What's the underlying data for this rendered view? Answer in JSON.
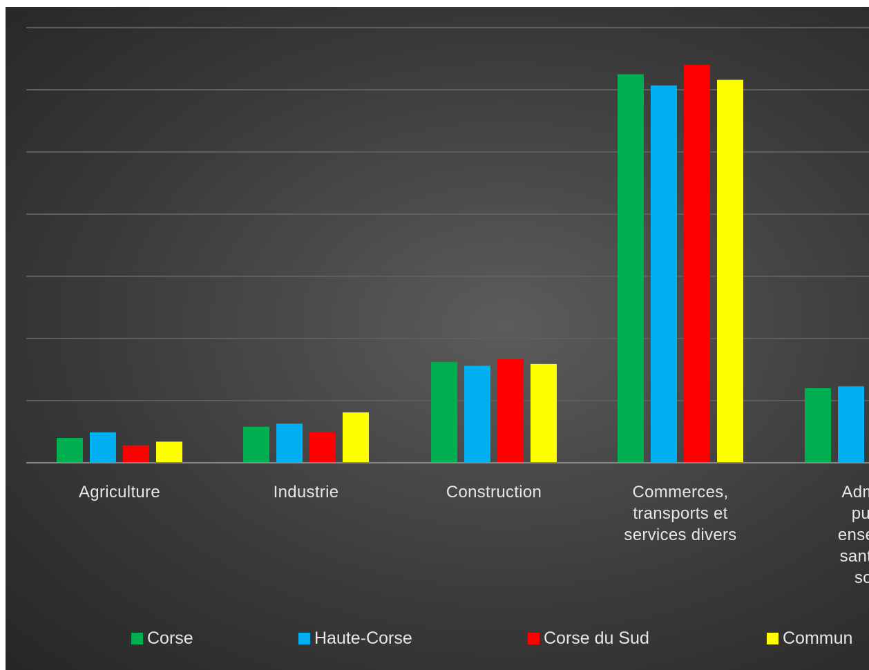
{
  "colors": {
    "Corse": "#00b050",
    "Haute-Corse": "#00b0f0",
    "Corse du Sud": "#ff0000",
    "Commun": "#ffff00"
  },
  "chart_data": {
    "type": "bar",
    "title": "",
    "xlabel": "",
    "ylabel": "",
    "ylim": [
      0,
      70
    ],
    "grid": true,
    "legend_position": "bottom",
    "categories": [
      [
        "Agriculture"
      ],
      [
        "Industrie"
      ],
      [
        "Construction"
      ],
      [
        "Commerces,",
        "transports et",
        "services divers"
      ],
      [
        "Admini",
        "publ",
        "enseign",
        "santé e",
        "soc"
      ]
    ],
    "series": [
      {
        "name": "Corse",
        "color": "#00b050",
        "values": [
          4.0,
          5.8,
          16.2,
          62.5,
          12.0
        ]
      },
      {
        "name": "Haute-Corse",
        "color": "#00b0f0",
        "values": [
          4.9,
          6.3,
          15.6,
          60.7,
          12.3
        ]
      },
      {
        "name": "Corse du Sud",
        "color": "#ff0000",
        "values": [
          2.8,
          4.9,
          16.7,
          64.0,
          null
        ]
      },
      {
        "name": "Commun",
        "color": "#ffff00",
        "values": [
          3.4,
          8.1,
          15.9,
          61.6,
          null
        ]
      }
    ]
  }
}
